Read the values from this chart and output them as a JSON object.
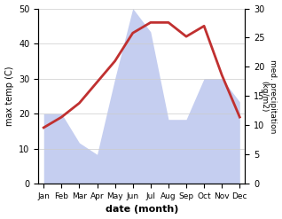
{
  "months": [
    "Jan",
    "Feb",
    "Mar",
    "Apr",
    "May",
    "Jun",
    "Jul",
    "Aug",
    "Sep",
    "Oct",
    "Nov",
    "Dec"
  ],
  "temp": [
    16,
    19,
    23,
    29,
    35,
    43,
    46,
    46,
    42,
    45,
    31,
    19
  ],
  "precip": [
    12,
    12,
    7,
    5,
    18,
    30,
    26,
    11,
    11,
    18,
    18,
    14
  ],
  "temp_color": "#c03030",
  "precip_fill_color": "#c5cef0",
  "xlabel": "date (month)",
  "ylabel_left": "max temp (C)",
  "ylabel_right": "med. precipitation\n(kg/m2)",
  "ylim_left": [
    0,
    50
  ],
  "ylim_right": [
    0,
    30
  ],
  "yticks_left": [
    0,
    10,
    20,
    30,
    40,
    50
  ],
  "yticks_right": [
    0,
    5,
    10,
    15,
    20,
    25,
    30
  ],
  "bg_color": "#ffffff",
  "grid_color": "#cccccc"
}
